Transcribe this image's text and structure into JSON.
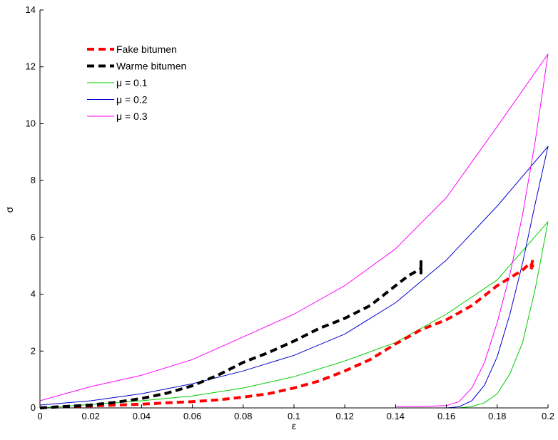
{
  "chart_data": {
    "type": "line",
    "xlabel": "ε",
    "ylabel": "σ",
    "xlim": [
      0,
      0.2
    ],
    "ylim": [
      0,
      14
    ],
    "xticks": [
      0,
      0.02,
      0.04,
      0.06,
      0.08,
      0.1,
      0.12,
      0.14,
      0.16,
      0.18,
      0.2
    ],
    "xtick_labels": [
      "0",
      "0.02",
      "0.04",
      "0.06",
      "0.08",
      "0.1",
      "0.12",
      "0.14",
      "0.16",
      "0.18",
      "0.2"
    ],
    "yticks": [
      0,
      2,
      4,
      6,
      8,
      10,
      12,
      14
    ],
    "ytick_labels": [
      "0",
      "2",
      "4",
      "6",
      "8",
      "10",
      "12",
      "14"
    ],
    "grid": false,
    "legend_position": "top-left",
    "series": [
      {
        "name": "Fake bitumen",
        "color": "#ff0000",
        "style": "dashed-thick",
        "x": [
          0,
          0.01,
          0.02,
          0.03,
          0.04,
          0.05,
          0.06,
          0.07,
          0.08,
          0.09,
          0.1,
          0.11,
          0.12,
          0.13,
          0.14,
          0.15,
          0.16,
          0.17,
          0.18,
          0.19,
          0.193,
          0.194,
          0.193,
          0.194
        ],
        "y": [
          0,
          0.05,
          0.07,
          0.1,
          0.13,
          0.18,
          0.22,
          0.28,
          0.38,
          0.5,
          0.7,
          0.95,
          1.3,
          1.7,
          2.25,
          2.75,
          3.1,
          3.6,
          4.3,
          4.85,
          5.1,
          5.0,
          4.85,
          5.2
        ]
      },
      {
        "name": "Warme bitumen",
        "color": "#000000",
        "style": "dashed-thick",
        "x": [
          0,
          0.01,
          0.02,
          0.03,
          0.04,
          0.05,
          0.06,
          0.07,
          0.08,
          0.09,
          0.1,
          0.11,
          0.12,
          0.13,
          0.14,
          0.145,
          0.15,
          0.15,
          0.15
        ],
        "y": [
          0,
          0.05,
          0.1,
          0.2,
          0.33,
          0.52,
          0.78,
          1.15,
          1.6,
          1.95,
          2.35,
          2.8,
          3.15,
          3.6,
          4.3,
          4.65,
          4.9,
          4.75,
          5.2
        ]
      },
      {
        "name": "μ = 0.1",
        "color": "#00cc00",
        "style": "solid",
        "x": [
          0,
          0.02,
          0.04,
          0.06,
          0.08,
          0.1,
          0.12,
          0.14,
          0.16,
          0.18,
          0.2,
          0.195,
          0.19,
          0.185,
          0.18,
          0.175,
          0.17,
          0.165,
          0.16
        ],
        "y": [
          0,
          0.12,
          0.25,
          0.42,
          0.7,
          1.1,
          1.65,
          2.3,
          3.3,
          4.5,
          6.55,
          4.2,
          2.3,
          1.2,
          0.5,
          0.18,
          0.05,
          0.0,
          0.0
        ]
      },
      {
        "name": "μ = 0.2",
        "color": "#0000cc",
        "style": "solid",
        "x": [
          0,
          0.02,
          0.04,
          0.06,
          0.08,
          0.1,
          0.12,
          0.14,
          0.16,
          0.18,
          0.2,
          0.195,
          0.19,
          0.185,
          0.18,
          0.175,
          0.17,
          0.165,
          0.16
        ],
        "y": [
          0.1,
          0.25,
          0.5,
          0.85,
          1.3,
          1.85,
          2.6,
          3.7,
          5.2,
          7.1,
          9.2,
          7.2,
          5.1,
          3.3,
          1.8,
          0.8,
          0.25,
          0.04,
          0.0
        ]
      },
      {
        "name": "μ = 0.3",
        "color": "#ff00ff",
        "style": "solid",
        "x": [
          0,
          0.02,
          0.04,
          0.06,
          0.08,
          0.1,
          0.12,
          0.14,
          0.16,
          0.18,
          0.2,
          0.195,
          0.19,
          0.185,
          0.18,
          0.175,
          0.17,
          0.165,
          0.16,
          0.15,
          0.14
        ],
        "y": [
          0.25,
          0.75,
          1.15,
          1.7,
          2.5,
          3.3,
          4.3,
          5.6,
          7.4,
          9.9,
          12.45,
          9.4,
          6.8,
          4.7,
          3.0,
          1.6,
          0.7,
          0.22,
          0.08,
          0.05,
          0.05
        ]
      }
    ]
  }
}
